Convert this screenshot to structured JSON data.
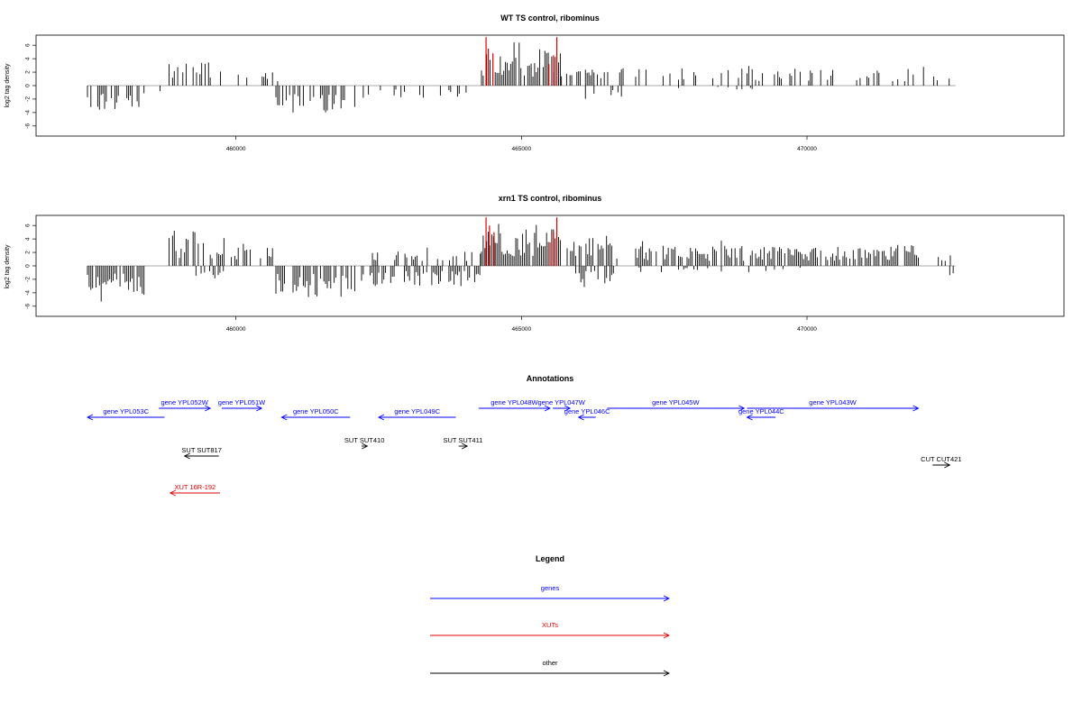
{
  "chart_data": [
    {
      "type": "bar",
      "title": "WT TS control, ribominus",
      "ylabel": "log2 tag density",
      "ylim": [
        -7.5,
        7.5
      ],
      "yticks": [
        6,
        4,
        2,
        0,
        -2,
        -4,
        -6
      ],
      "xlim": [
        456500,
        474500
      ],
      "xticks": [
        460000,
        465000,
        470000
      ],
      "baseline": [
        457400,
        472600
      ],
      "segments": [
        {
          "start": 457400,
          "end": 458400,
          "sign": -1,
          "amp": 3.8,
          "density": 0.55
        },
        {
          "start": 458400,
          "end": 458800,
          "sign": -1,
          "amp": 1.2,
          "density": 0.15
        },
        {
          "start": 458800,
          "end": 459800,
          "sign": 1,
          "amp": 3.6,
          "density": 0.45
        },
        {
          "start": 459800,
          "end": 460800,
          "sign": 1,
          "amp": 2.0,
          "density": 0.18
        },
        {
          "start": 460700,
          "end": 462100,
          "sign": -1,
          "amp": 4.0,
          "density": 0.55
        },
        {
          "start": 462200,
          "end": 464200,
          "sign": -1,
          "amp": 1.8,
          "density": 0.18
        },
        {
          "start": 462400,
          "end": 462800,
          "sign": 1,
          "amp": 1.8,
          "density": 0.12
        },
        {
          "start": 464300,
          "end": 465700,
          "sign": 1,
          "amp": 5.2,
          "density": 0.85
        },
        {
          "start": 465700,
          "end": 466800,
          "sign": 1,
          "amp": 2.5,
          "density": 0.3
        },
        {
          "start": 466000,
          "end": 466800,
          "sign": -1,
          "amp": 2.2,
          "density": 0.15
        },
        {
          "start": 467000,
          "end": 472600,
          "sign": 1,
          "amp": 2.6,
          "density": 0.3
        },
        {
          "start": 467600,
          "end": 469200,
          "sign": -1,
          "amp": 0.6,
          "density": 0.04
        }
      ],
      "highlights": [
        {
          "x": 464380,
          "value": 7.2
        },
        {
          "x": 464420,
          "value": 5.5
        },
        {
          "x": 464500,
          "value": 4.8
        },
        {
          "x": 465620,
          "value": 7.2
        },
        {
          "x": 465560,
          "value": 4.5
        },
        {
          "x": 465480,
          "value": 3.2
        }
      ],
      "highlight_color": "#dd0000"
    },
    {
      "type": "bar",
      "title": "xrn1 TS control, ribominus",
      "ylabel": "log2 tag density",
      "ylim": [
        -7.5,
        7.5
      ],
      "yticks": [
        6,
        4,
        2,
        0,
        -2,
        -4,
        -6
      ],
      "xlim": [
        456500,
        474500
      ],
      "xticks": [
        460000,
        465000,
        470000
      ],
      "baseline": [
        457400,
        472600
      ],
      "segments": [
        {
          "start": 457400,
          "end": 458400,
          "sign": -1,
          "amp": 4.6,
          "density": 0.85
        },
        {
          "start": 458800,
          "end": 459800,
          "sign": 1,
          "amp": 4.2,
          "density": 0.65
        },
        {
          "start": 459000,
          "end": 459800,
          "sign": -1,
          "amp": 1.5,
          "density": 0.15
        },
        {
          "start": 459800,
          "end": 460700,
          "sign": 1,
          "amp": 2.8,
          "density": 0.4
        },
        {
          "start": 460700,
          "end": 462100,
          "sign": -1,
          "amp": 4.6,
          "density": 0.85
        },
        {
          "start": 462200,
          "end": 464300,
          "sign": -1,
          "amp": 3.0,
          "density": 0.55
        },
        {
          "start": 462300,
          "end": 464300,
          "sign": 1,
          "amp": 2.2,
          "density": 0.3
        },
        {
          "start": 464300,
          "end": 465700,
          "sign": 1,
          "amp": 5.5,
          "density": 0.95
        },
        {
          "start": 465800,
          "end": 466700,
          "sign": 1,
          "amp": 4.2,
          "density": 0.8
        },
        {
          "start": 465800,
          "end": 466700,
          "sign": -1,
          "amp": 2.8,
          "density": 0.5
        },
        {
          "start": 467000,
          "end": 472000,
          "sign": 1,
          "amp": 3.0,
          "density": 0.75
        },
        {
          "start": 467000,
          "end": 470500,
          "sign": -1,
          "amp": 1.0,
          "density": 0.12
        },
        {
          "start": 472300,
          "end": 472600,
          "sign": 1,
          "amp": 2.0,
          "density": 0.2
        },
        {
          "start": 472500,
          "end": 472600,
          "sign": -1,
          "amp": 2.2,
          "density": 0.15
        }
      ],
      "highlights": [
        {
          "x": 464380,
          "value": 7.2
        },
        {
          "x": 464440,
          "value": 6.0
        },
        {
          "x": 464520,
          "value": 5.0
        },
        {
          "x": 465620,
          "value": 7.2
        },
        {
          "x": 465560,
          "value": 5.0
        },
        {
          "x": 465500,
          "value": 3.5
        }
      ],
      "highlight_color": "#dd0000"
    }
  ],
  "annotations": {
    "title": "Annotations",
    "xlim": [
      456500,
      474500
    ],
    "features": [
      {
        "label": "gene YPL053C",
        "start": 457400,
        "end": 458750,
        "strand": "-",
        "row": 1,
        "color": "#0000ff"
      },
      {
        "label": "gene YPL052W",
        "start": 458650,
        "end": 459550,
        "strand": "+",
        "row": 0,
        "color": "#0000ff"
      },
      {
        "label": "gene YPL051W",
        "start": 459750,
        "end": 460450,
        "strand": "+",
        "row": 0,
        "color": "#0000ff"
      },
      {
        "label": "gene YPL050C",
        "start": 460800,
        "end": 462000,
        "strand": "-",
        "row": 1,
        "color": "#0000ff"
      },
      {
        "label": "gene YPL049C",
        "start": 462500,
        "end": 463850,
        "strand": "-",
        "row": 1,
        "color": "#0000ff"
      },
      {
        "label": "gene YPL048W",
        "start": 464250,
        "end": 465500,
        "strand": "+",
        "row": 0,
        "color": "#0000ff"
      },
      {
        "label": "gene YPL047W",
        "start": 465550,
        "end": 465850,
        "strand": "+",
        "row": 0,
        "color": "#0000ff"
      },
      {
        "label": "gene YPL046C",
        "start": 466000,
        "end": 466300,
        "strand": "-",
        "row": 1,
        "color": "#0000ff"
      },
      {
        "label": "gene YPL045W",
        "start": 466500,
        "end": 468900,
        "strand": "+",
        "row": 0,
        "color": "#0000ff"
      },
      {
        "label": "gene YPL044C",
        "start": 468950,
        "end": 469450,
        "strand": "-",
        "row": 1,
        "color": "#0000ff"
      },
      {
        "label": "gene YPL043W",
        "start": 468950,
        "end": 471950,
        "strand": "+",
        "row": 0,
        "color": "#0000ff"
      },
      {
        "label": "SUT SUT817",
        "start": 459100,
        "end": 459700,
        "strand": "-",
        "row": 2,
        "color": "#000000"
      },
      {
        "label": "SUT SUT410",
        "start": 462200,
        "end": 462300,
        "strand": "+",
        "row": 3,
        "color": "#000000"
      },
      {
        "label": "SUT SUT411",
        "start": 463900,
        "end": 464050,
        "strand": "+",
        "row": 3,
        "color": "#000000"
      },
      {
        "label": "CUT CUT421",
        "start": 472200,
        "end": 472500,
        "strand": "+",
        "row": 4,
        "color": "#000000"
      },
      {
        "label": "XUT 16R-192",
        "start": 458850,
        "end": 459720,
        "strand": "-",
        "row": 5,
        "color": "#dd0000"
      }
    ]
  },
  "legend": {
    "title": "Legend",
    "items": [
      {
        "label": "genes",
        "color": "#0000ff"
      },
      {
        "label": "XUTs",
        "color": "#dd0000"
      },
      {
        "label": "other",
        "color": "#000000"
      }
    ]
  }
}
